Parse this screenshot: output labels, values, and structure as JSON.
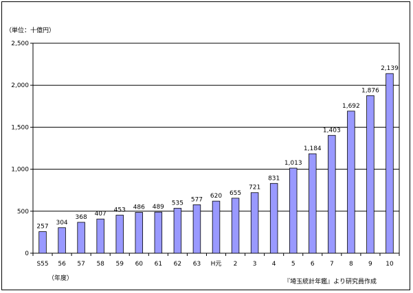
{
  "chart_data": {
    "type": "bar",
    "unit_label": "（単位：十億円）",
    "xlabel": "（年度）",
    "source_note": "『埼玉統計年鑑』より研究員作成",
    "categories": [
      "S55",
      "56",
      "57",
      "58",
      "59",
      "60",
      "61",
      "62",
      "63",
      "H元",
      "2",
      "3",
      "4",
      "5",
      "6",
      "7",
      "8",
      "9",
      "10"
    ],
    "values": [
      257,
      304,
      368,
      407,
      453,
      486,
      489,
      535,
      577,
      620,
      655,
      721,
      831,
      1013,
      1184,
      1403,
      1692,
      1876,
      2139
    ],
    "value_labels": [
      "257",
      "304",
      "368",
      "407",
      "453",
      "486",
      "489",
      "535",
      "577",
      "620",
      "655",
      "721",
      "831",
      "1,013",
      "1,184",
      "1,403",
      "1,692",
      "1,876",
      "2,139"
    ],
    "ylim": [
      0,
      2500
    ],
    "yticks": [
      0,
      500,
      1000,
      1500,
      2000,
      2500
    ],
    "ytick_labels": [
      "0",
      "500",
      "1,000",
      "1,500",
      "2,000",
      "2,500"
    ],
    "grid": true,
    "bar_color": "#9999ff",
    "bar_border": "#000000"
  }
}
